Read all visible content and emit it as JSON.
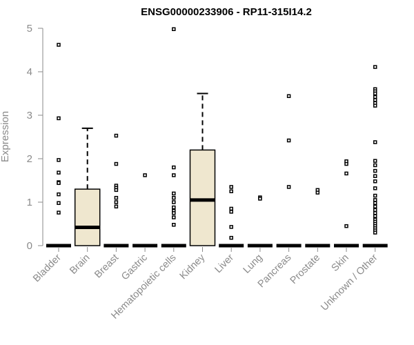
{
  "chart_data": {
    "type": "box",
    "title": "ENSG00000233906 - RP11-315I14.2",
    "xlabel": "",
    "ylabel": "Expression",
    "ylim": [
      0,
      5
    ],
    "yticks": [
      0,
      1,
      2,
      3,
      4,
      5
    ],
    "grid": false,
    "box_fill": "#efe7cf",
    "box_stroke": "#000000",
    "categories": [
      "Bladder",
      "Brain",
      "Breast",
      "Gastric",
      "Hematopoietic cells",
      "Kidney",
      "Liver",
      "Lung",
      "Pancreas",
      "Prostate",
      "Skin",
      "Unknown / Other"
    ],
    "boxes": [
      {
        "category": "Bladder",
        "q1": 0,
        "median": 0,
        "q3": 0,
        "whisker_low": 0,
        "whisker_high": 0,
        "outliers": [
          4.62,
          2.93,
          1.97,
          1.68,
          1.46,
          1.44,
          1.18,
          0.98,
          0.76
        ]
      },
      {
        "category": "Brain",
        "q1": 0,
        "median": 0.42,
        "q3": 1.3,
        "whisker_low": 0,
        "whisker_high": 2.7,
        "outliers": []
      },
      {
        "category": "Breast",
        "q1": 0,
        "median": 0,
        "q3": 0,
        "whisker_low": 0,
        "whisker_high": 0,
        "outliers": [
          2.53,
          1.88,
          1.38,
          1.33,
          1.28,
          1.1,
          1.0,
          0.9
        ]
      },
      {
        "category": "Gastric",
        "q1": 0,
        "median": 0,
        "q3": 0,
        "whisker_low": 0,
        "whisker_high": 0,
        "outliers": [
          1.62
        ]
      },
      {
        "category": "Hematopoietic cells",
        "q1": 0,
        "median": 0,
        "q3": 0,
        "whisker_low": 0,
        "whisker_high": 0,
        "outliers": [
          4.98,
          1.8,
          1.62,
          1.2,
          1.1,
          1.0,
          0.88,
          0.8,
          0.75,
          0.65,
          0.48
        ]
      },
      {
        "category": "Kidney",
        "q1": 0,
        "median": 1.05,
        "q3": 2.2,
        "whisker_low": 0,
        "whisker_high": 3.5,
        "outliers": []
      },
      {
        "category": "Liver",
        "q1": 0,
        "median": 0,
        "q3": 0,
        "whisker_low": 0,
        "whisker_high": 0,
        "outliers": [
          1.35,
          1.25,
          0.85,
          0.78,
          0.43,
          0.18
        ]
      },
      {
        "category": "Lung",
        "q1": 0,
        "median": 0,
        "q3": 0,
        "whisker_low": 0,
        "whisker_high": 0,
        "outliers": [
          1.11,
          1.08
        ]
      },
      {
        "category": "Pancreas",
        "q1": 0,
        "median": 0,
        "q3": 0,
        "whisker_low": 0,
        "whisker_high": 0,
        "outliers": [
          3.44,
          2.42,
          1.35
        ]
      },
      {
        "category": "Prostate",
        "q1": 0,
        "median": 0,
        "q3": 0,
        "whisker_low": 0,
        "whisker_high": 0,
        "outliers": [
          1.28,
          1.22
        ]
      },
      {
        "category": "Skin",
        "q1": 0,
        "median": 0,
        "q3": 0,
        "whisker_low": 0,
        "whisker_high": 0,
        "outliers": [
          1.94,
          1.88,
          1.66,
          0.45
        ]
      },
      {
        "category": "Unknown / Other",
        "q1": 0,
        "median": 0,
        "q3": 0,
        "whisker_low": 0,
        "whisker_high": 0,
        "outliers": [
          4.11,
          3.6,
          3.55,
          3.5,
          3.42,
          3.35,
          3.28,
          3.22,
          2.38,
          1.95,
          1.85,
          1.72,
          1.6,
          1.48,
          1.32,
          1.15,
          1.05,
          0.98,
          0.9,
          0.82,
          0.75,
          0.68,
          0.6,
          0.55,
          0.5,
          0.45,
          0.4,
          0.35,
          0.3
        ]
      }
    ]
  }
}
